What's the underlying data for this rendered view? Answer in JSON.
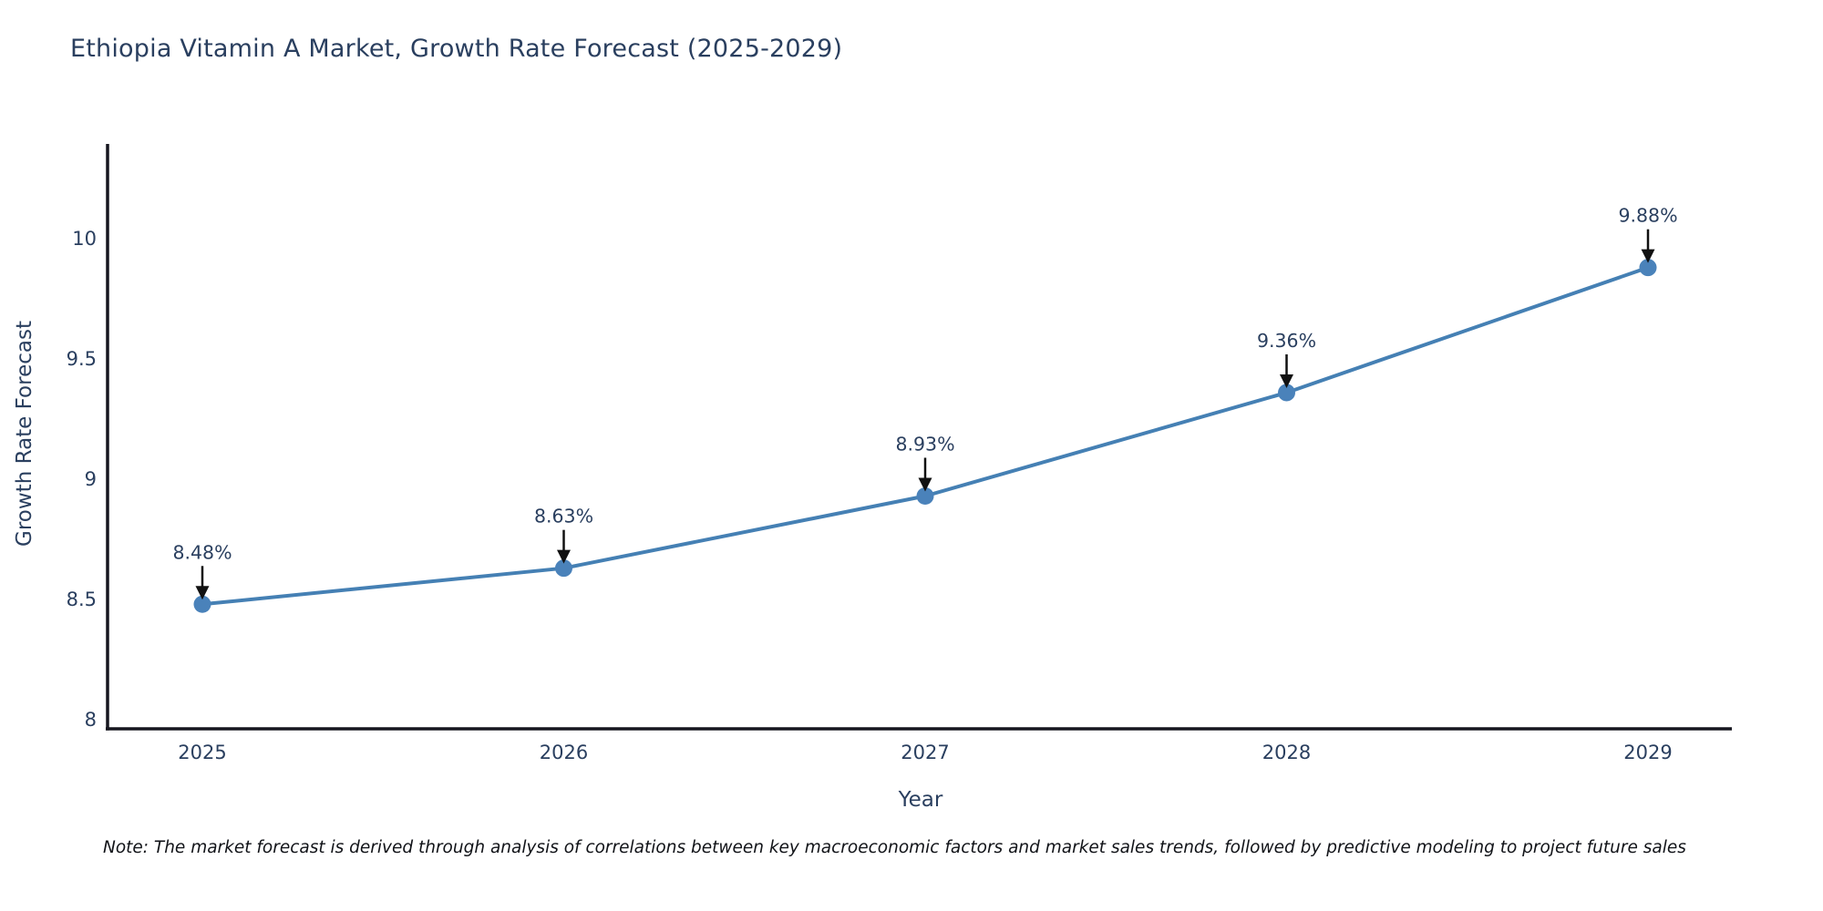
{
  "title": "Ethiopia Vitamin A Market, Growth Rate Forecast (2025-2029)",
  "note": "Note: The market forecast is derived through analysis of correlations between key macroeconomic factors and market sales trends, followed by predictive modeling to project future sales",
  "chart_data": {
    "type": "line",
    "title": "Ethiopia Vitamin A Market, Growth Rate Forecast (2025-2029)",
    "x": [
      "2025",
      "2026",
      "2027",
      "2028",
      "2029"
    ],
    "series": [
      {
        "name": "Growth Rate Forecast",
        "values": [
          8.48,
          8.63,
          8.93,
          9.36,
          9.88
        ],
        "labels": [
          "8.48%",
          "8.63%",
          "8.93%",
          "9.36%",
          "9.88%"
        ]
      }
    ],
    "xlabel": "Year",
    "ylabel": "Growth Rate Forecast",
    "yticks": [
      8,
      8.5,
      9,
      9.5,
      10
    ],
    "ylim": [
      7.96,
      10.42
    ],
    "grid": false,
    "legend": "none",
    "annotations": "percentage value labels with black arrows pointing to each data point",
    "colors": {
      "line": "#4580b4",
      "marker": "#4a82ba",
      "text": "#2a3f5f",
      "axis": "#16161f",
      "arrow": "#111111"
    }
  }
}
